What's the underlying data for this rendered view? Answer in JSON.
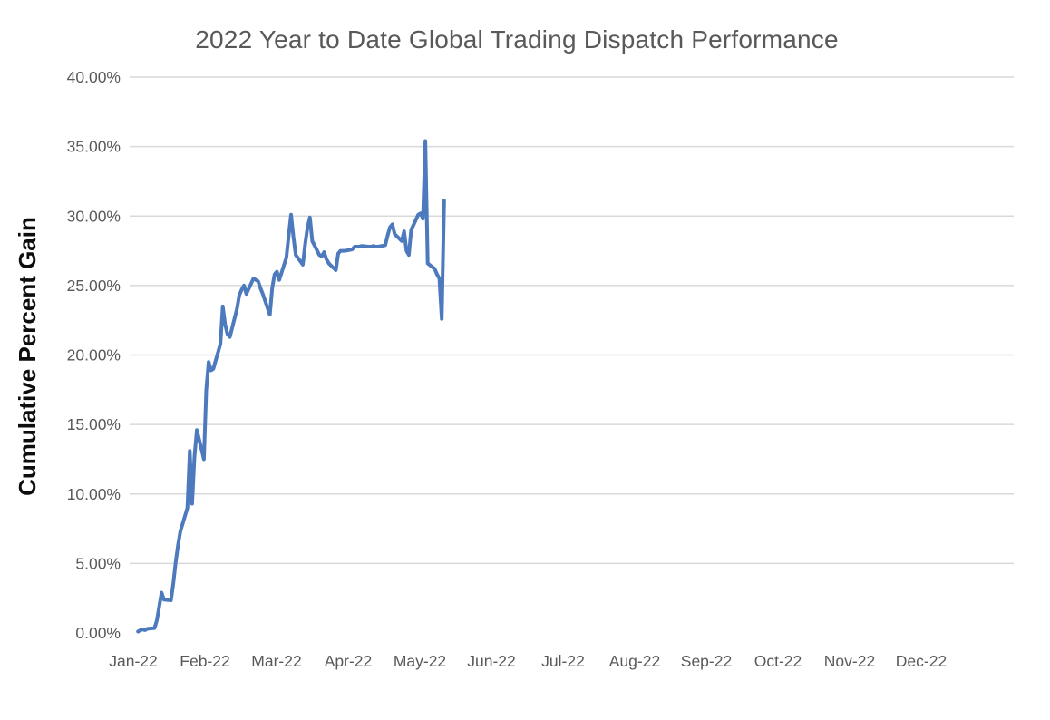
{
  "chart_data": {
    "type": "line",
    "title": "2022 Year to Date Global Trading Dispatch Performance",
    "xlabel": "",
    "ylabel": "Cumulative Percent Gain",
    "ylim": [
      0,
      40
    ],
    "y_tick_step": 5,
    "y_tick_labels": [
      "0.00%",
      "5.00%",
      "10.00%",
      "15.00%",
      "20.00%",
      "25.00%",
      "30.00%",
      "35.00%",
      "40.00%"
    ],
    "x_tick_labels": [
      "Jan-22",
      "Feb-22",
      "Mar-22",
      "Apr-22",
      "May-22",
      "Jun-22",
      "Jul-22",
      "Aug-22",
      "Sep-22",
      "Oct-22",
      "Nov-22",
      "Dec-22"
    ],
    "grid": "horizontal-only, no 0% baseline",
    "legend": "none",
    "markers": "none",
    "colors": {
      "line": "#4d79bd",
      "gridline": "#d9d9d9",
      "tick_label": "#595959",
      "title": "#595959",
      "axis_title": "#0d0d0d",
      "background": "#ffffff"
    },
    "series": [
      {
        "name": "Cumulative Percent Gain",
        "dates": [
          "2022-01-03",
          "2022-01-04",
          "2022-01-05",
          "2022-01-06",
          "2022-01-07",
          "2022-01-10",
          "2022-01-11",
          "2022-01-12",
          "2022-01-13",
          "2022-01-14",
          "2022-01-17",
          "2022-01-18",
          "2022-01-19",
          "2022-01-20",
          "2022-01-21",
          "2022-01-24",
          "2022-01-25",
          "2022-01-26",
          "2022-01-27",
          "2022-01-28",
          "2022-01-31",
          "2022-02-01",
          "2022-02-02",
          "2022-02-03",
          "2022-02-04",
          "2022-02-07",
          "2022-02-08",
          "2022-02-09",
          "2022-02-10",
          "2022-02-11",
          "2022-02-14",
          "2022-02-15",
          "2022-02-16",
          "2022-02-17",
          "2022-02-18",
          "2022-02-21",
          "2022-02-22",
          "2022-02-23",
          "2022-02-24",
          "2022-02-25",
          "2022-02-28",
          "2022-03-01",
          "2022-03-02",
          "2022-03-03",
          "2022-03-04",
          "2022-03-07",
          "2022-03-08",
          "2022-03-09",
          "2022-03-10",
          "2022-03-11",
          "2022-03-14",
          "2022-03-15",
          "2022-03-16",
          "2022-03-17",
          "2022-03-18",
          "2022-03-21",
          "2022-03-22",
          "2022-03-23",
          "2022-03-24",
          "2022-03-25",
          "2022-03-28",
          "2022-03-29",
          "2022-03-30",
          "2022-03-31",
          "2022-04-01",
          "2022-04-04",
          "2022-04-05",
          "2022-04-06",
          "2022-04-07",
          "2022-04-08",
          "2022-04-11",
          "2022-04-12",
          "2022-04-13",
          "2022-04-14",
          "2022-04-15",
          "2022-04-18",
          "2022-04-19",
          "2022-04-20",
          "2022-04-21",
          "2022-04-22",
          "2022-04-25",
          "2022-04-26",
          "2022-04-27",
          "2022-04-28",
          "2022-04-29",
          "2022-05-02",
          "2022-05-03",
          "2022-05-04",
          "2022-05-05",
          "2022-05-06",
          "2022-05-09",
          "2022-05-10",
          "2022-05-11",
          "2022-05-12",
          "2022-05-13"
        ],
        "values": [
          0.1,
          0.2,
          0.25,
          0.2,
          0.3,
          0.35,
          0.9,
          1.9,
          2.9,
          2.4,
          2.35,
          3.6,
          5.1,
          6.3,
          7.3,
          9.0,
          13.1,
          9.3,
          12.7,
          14.6,
          12.5,
          17.5,
          19.5,
          18.9,
          19.0,
          20.8,
          23.5,
          22.2,
          21.5,
          21.3,
          23.3,
          24.3,
          24.7,
          25.0,
          24.4,
          25.5,
          25.4,
          25.3,
          24.8,
          24.4,
          22.9,
          24.8,
          25.8,
          26.0,
          25.4,
          27.0,
          28.6,
          30.1,
          28.5,
          27.2,
          26.5,
          28.0,
          29.2,
          29.9,
          28.2,
          27.2,
          27.1,
          27.4,
          26.9,
          26.6,
          26.1,
          27.3,
          27.5,
          27.5,
          27.5,
          27.6,
          27.8,
          27.8,
          27.8,
          27.85,
          27.8,
          27.8,
          27.85,
          27.8,
          27.8,
          27.9,
          28.6,
          29.2,
          29.4,
          28.7,
          28.2,
          28.9,
          27.5,
          27.2,
          29.0,
          30.1,
          30.2,
          29.8,
          35.4,
          26.6,
          26.2,
          25.8,
          25.5,
          22.6,
          31.1
        ]
      }
    ]
  }
}
